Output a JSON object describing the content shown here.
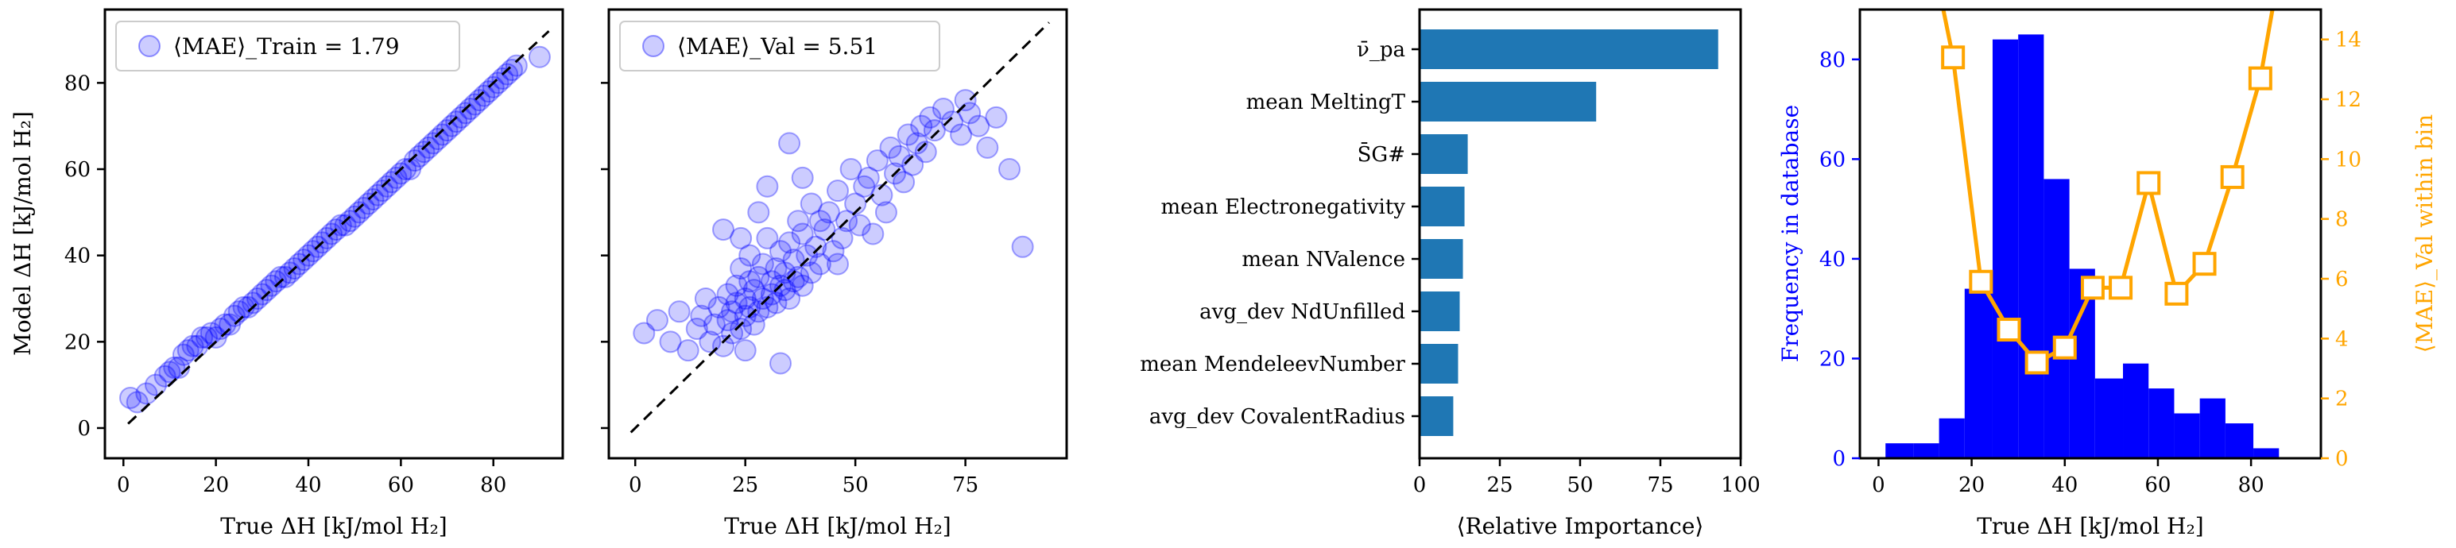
{
  "chart_data": [
    {
      "type": "scatter",
      "xlabel": "True ΔH [kJ/mol H₂]",
      "ylabel": "Model ΔH [kJ/mol H₂]",
      "legend": "⟨MAE⟩_Train = 1.79",
      "legend_placement": "top-left",
      "xlim": [
        -4,
        95
      ],
      "ylim": [
        -7,
        97
      ],
      "xticks": [
        0,
        20,
        40,
        60,
        80
      ],
      "yticks": [
        0,
        20,
        40,
        60,
        80
      ],
      "reference_line": "y = x (dashed)",
      "point_color": "#0000ff",
      "point_alpha": 0.2,
      "x": [
        1.5,
        3,
        5,
        7,
        9,
        10,
        11,
        12,
        13,
        14,
        15,
        16,
        17,
        18,
        19,
        20,
        21,
        22,
        23,
        24,
        25,
        26,
        27,
        28,
        29,
        30,
        31,
        32,
        33,
        34,
        35,
        36,
        37,
        38,
        39,
        40,
        41,
        42,
        43,
        44,
        45,
        46,
        47,
        48,
        49,
        50,
        51,
        52,
        53,
        54,
        55,
        56,
        57,
        58,
        59,
        60,
        61,
        62,
        63,
        64,
        65,
        66,
        67,
        68,
        69,
        70,
        71,
        72,
        73,
        74,
        75,
        76,
        77,
        78,
        79,
        80,
        81,
        82,
        83,
        84,
        85,
        90
      ],
      "y": [
        7,
        6,
        8,
        10,
        12,
        13,
        14,
        14,
        17,
        18,
        19,
        19,
        21,
        21,
        22,
        21,
        23,
        24,
        24,
        26,
        27,
        28,
        28,
        29,
        30,
        31,
        32,
        33,
        34,
        35,
        35,
        36,
        37,
        38,
        39,
        40,
        41,
        42,
        43,
        44,
        45,
        46,
        47,
        47,
        48,
        49,
        50,
        51,
        52,
        53,
        54,
        55,
        56,
        57,
        58,
        59,
        60,
        60,
        62,
        63,
        64,
        65,
        66,
        67,
        68,
        69,
        70,
        71,
        72,
        73,
        74,
        75,
        76,
        77,
        78,
        79,
        80,
        81,
        82,
        83,
        84,
        86
      ]
    },
    {
      "type": "scatter",
      "xlabel": "True ΔH [kJ/mol H₂]",
      "legend": "⟨MAE⟩_Val = 5.51",
      "legend_placement": "top-left",
      "xlim": [
        -6,
        98
      ],
      "ylim": [
        -7,
        97
      ],
      "xticks": [
        0,
        25,
        50,
        75
      ],
      "yticks": [
        0,
        20,
        40,
        60,
        80
      ],
      "reference_line": "y = x (dashed)",
      "point_color": "#0000ff",
      "point_alpha": 0.2,
      "x": [
        2,
        5,
        8,
        10,
        12,
        14,
        15,
        16,
        17,
        18,
        19,
        20,
        21,
        21,
        22,
        22,
        23,
        23,
        24,
        24,
        25,
        25,
        26,
        26,
        27,
        27,
        28,
        28,
        29,
        29,
        30,
        30,
        31,
        31,
        32,
        32,
        33,
        33,
        34,
        34,
        35,
        35,
        36,
        36,
        37,
        37,
        38,
        38,
        39,
        40,
        40,
        41,
        42,
        43,
        44,
        45,
        46,
        47,
        48,
        49,
        50,
        51,
        52,
        53,
        54,
        55,
        56,
        57,
        58,
        59,
        60,
        61,
        62,
        63,
        64,
        65,
        66,
        67,
        68,
        70,
        72,
        74,
        75,
        76,
        78,
        80,
        82,
        85,
        88,
        20,
        25,
        30,
        35,
        28,
        33,
        38,
        42,
        46,
        24,
        26
      ],
      "y": [
        22,
        25,
        20,
        27,
        18,
        23,
        26,
        30,
        20,
        24,
        28,
        19,
        25,
        31,
        22,
        27,
        29,
        33,
        23,
        37,
        26,
        30,
        28,
        40,
        24,
        32,
        27,
        35,
        30,
        38,
        28,
        44,
        31,
        34,
        29,
        37,
        33,
        41,
        32,
        36,
        30,
        43,
        34,
        39,
        35,
        48,
        33,
        45,
        40,
        36,
        52,
        42,
        38,
        46,
        50,
        41,
        55,
        44,
        48,
        60,
        52,
        47,
        56,
        58,
        45,
        62,
        54,
        50,
        65,
        59,
        63,
        57,
        68,
        61,
        66,
        70,
        64,
        72,
        69,
        74,
        71,
        68,
        76,
        73,
        70,
        65,
        72,
        60,
        42,
        46,
        18,
        56,
        66,
        50,
        15,
        58,
        48,
        38,
        44,
        34
      ]
    },
    {
      "type": "bar",
      "orientation": "horizontal",
      "categories": [
        "ν̄_pa",
        "mean MeltingT",
        "S̄G#",
        "mean Electronegativity",
        "mean NValence",
        "avg_dev NdUnfilled",
        "mean MendeleevNumber",
        "avg_dev CovalentRadius"
      ],
      "values": [
        93,
        55,
        15,
        14,
        13.5,
        12.5,
        12,
        10.5
      ],
      "xlabel": "⟨Relative Importance⟩",
      "xlim": [
        0,
        100
      ],
      "xticks": [
        0,
        25,
        50,
        75,
        100
      ],
      "bar_color": "#1f77b4"
    },
    {
      "type": "bar",
      "secondary_type": "line",
      "xlabel": "True ΔH [kJ/mol H₂]",
      "ylabel": "Frequency in database",
      "y2label": "⟨MAE⟩_Val within bin",
      "xlim": [
        -4,
        95
      ],
      "ylim": [
        0,
        90
      ],
      "y2lim": [
        0,
        15
      ],
      "xticks": [
        0,
        20,
        40,
        60,
        80
      ],
      "yticks": [
        0,
        20,
        40,
        60,
        80
      ],
      "y2ticks": [
        0,
        2,
        4,
        6,
        8,
        10,
        12,
        14
      ],
      "bar_color": "#0000ff",
      "line_color": "#ffa500",
      "hist_bins": [
        [
          1.5,
          7.5
        ],
        [
          7.5,
          13
        ],
        [
          13,
          18.5
        ],
        [
          18.5,
          24.5
        ],
        [
          24.5,
          30
        ],
        [
          30,
          35.5
        ],
        [
          35.5,
          41
        ],
        [
          41,
          46.5
        ],
        [
          46.5,
          52.5
        ],
        [
          52.5,
          58
        ],
        [
          58,
          63.5
        ],
        [
          63.5,
          69
        ],
        [
          69,
          74.5
        ],
        [
          74.5,
          80.5
        ],
        [
          80.5,
          86
        ],
        [
          86,
          91
        ]
      ],
      "hist_counts": [
        3,
        3,
        8,
        34,
        84,
        85,
        56,
        38,
        16,
        19,
        14,
        9,
        12,
        7,
        2,
        0
      ],
      "mae_x": [
        10,
        16,
        22,
        28,
        34,
        40,
        46,
        52,
        58,
        64,
        70,
        76,
        82,
        88
      ],
      "mae_y": [
        18,
        13.4,
        5.9,
        4.3,
        3.2,
        3.7,
        5.7,
        5.7,
        9.2,
        5.5,
        6.5,
        9.4,
        12.7,
        18
      ]
    }
  ]
}
